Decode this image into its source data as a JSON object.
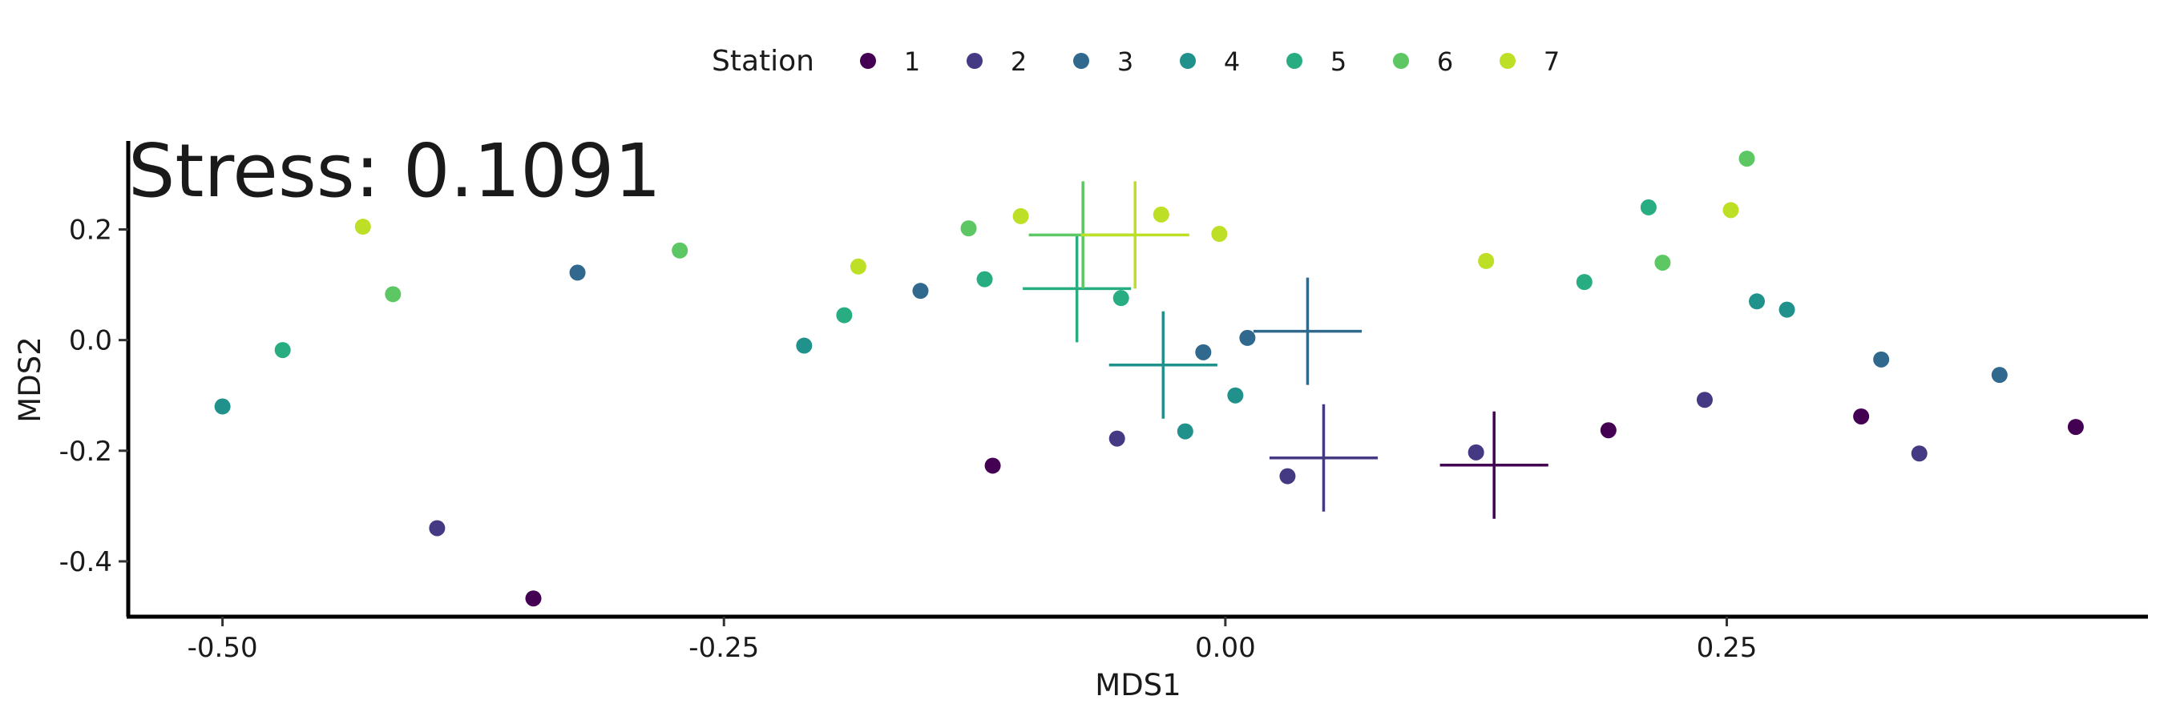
{
  "chart_data": {
    "type": "scatter",
    "title": "",
    "annotation": "Stress: 0.1091",
    "xlabel": "MDS1",
    "ylabel": "MDS2",
    "xlim": [
      -0.547,
      0.46
    ],
    "ylim": [
      -0.5,
      0.36
    ],
    "x_ticks": [
      -0.5,
      -0.25,
      0.0,
      0.25
    ],
    "x_tick_labels": [
      "-0.50",
      "-0.25",
      "0.00",
      "0.25"
    ],
    "y_ticks": [
      -0.4,
      -0.2,
      0.0,
      0.2
    ],
    "y_tick_labels": [
      "-0.4",
      "-0.2",
      "0.0",
      "0.2"
    ],
    "grid": false,
    "legend": {
      "title": "Station",
      "position": "top"
    },
    "series": [
      {
        "name": "1",
        "color": "#440154",
        "points": [
          [
            -0.345,
            -0.467
          ],
          [
            -0.116,
            -0.227
          ],
          [
            0.191,
            -0.163
          ],
          [
            0.317,
            -0.138
          ],
          [
            0.424,
            -0.157
          ]
        ],
        "centroid": [
          0.134,
          -0.226
        ],
        "err_x": 0.027,
        "err_y": 0.097
      },
      {
        "name": "2",
        "color": "#443983",
        "points": [
          [
            -0.393,
            -0.34
          ],
          [
            -0.054,
            -0.178
          ],
          [
            0.031,
            -0.246
          ],
          [
            0.125,
            -0.203
          ],
          [
            0.239,
            -0.108
          ],
          [
            0.346,
            -0.205
          ]
        ],
        "centroid": [
          0.049,
          -0.213
        ],
        "err_x": 0.027,
        "err_y": 0.097
      },
      {
        "name": "3",
        "color": "#31688e",
        "points": [
          [
            -0.323,
            0.122
          ],
          [
            -0.152,
            0.089
          ],
          [
            -0.011,
            -0.022
          ],
          [
            0.011,
            0.004
          ],
          [
            0.327,
            -0.035
          ],
          [
            0.386,
            -0.063
          ]
        ],
        "centroid": [
          0.041,
          0.016
        ],
        "err_x": 0.027,
        "err_y": 0.097
      },
      {
        "name": "4",
        "color": "#21918c",
        "points": [
          [
            -0.5,
            -0.12
          ],
          [
            -0.21,
            -0.01
          ],
          [
            -0.02,
            -0.165
          ],
          [
            0.005,
            -0.1
          ],
          [
            0.265,
            0.07
          ],
          [
            0.28,
            0.055
          ]
        ],
        "centroid": [
          -0.031,
          -0.045
        ],
        "err_x": 0.027,
        "err_y": 0.097
      },
      {
        "name": "5",
        "color": "#27ad81",
        "points": [
          [
            -0.47,
            -0.018
          ],
          [
            -0.19,
            0.045
          ],
          [
            -0.12,
            0.11
          ],
          [
            -0.052,
            0.076
          ],
          [
            0.179,
            0.105
          ],
          [
            0.211,
            0.24
          ]
        ],
        "centroid": [
          -0.074,
          0.093
        ],
        "err_x": 0.027,
        "err_y": 0.097
      },
      {
        "name": "6",
        "color": "#5dc863",
        "points": [
          [
            -0.415,
            0.083
          ],
          [
            -0.272,
            0.162
          ],
          [
            -0.128,
            0.202
          ],
          [
            0.218,
            0.14
          ],
          [
            0.26,
            0.328
          ]
        ],
        "centroid": [
          -0.071,
          0.19
        ],
        "err_x": 0.027,
        "err_y": 0.097
      },
      {
        "name": "7",
        "color": "#bddf26",
        "points": [
          [
            -0.43,
            0.205
          ],
          [
            -0.183,
            0.133
          ],
          [
            -0.102,
            0.224
          ],
          [
            -0.032,
            0.227
          ],
          [
            -0.003,
            0.192
          ],
          [
            0.13,
            0.143
          ],
          [
            0.252,
            0.235
          ]
        ],
        "centroid": [
          -0.045,
          0.19
        ],
        "err_x": 0.027,
        "err_y": 0.097
      }
    ]
  }
}
